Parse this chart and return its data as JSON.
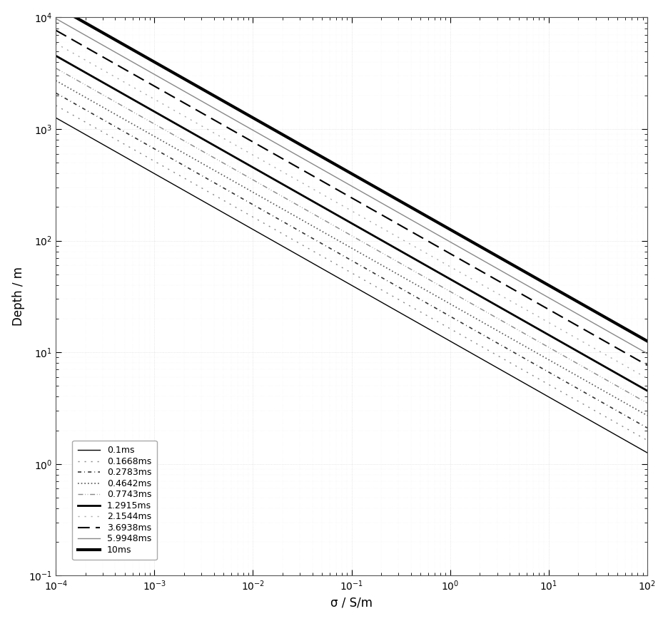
{
  "times_ms": [
    0.1,
    0.1668,
    0.2783,
    0.4642,
    0.7743,
    1.2915,
    2.1544,
    3.6938,
    5.9948,
    10.0
  ],
  "labels": [
    "0.1ms",
    "0.1668ms",
    "0.2783ms",
    "0.4642ms",
    "0.7743ms",
    "1.2915ms",
    "2.1544ms",
    "3.6938ms",
    "5.9948ms",
    "10ms"
  ],
  "line_configs": [
    {
      "color": "#000000",
      "linestyle": "-",
      "linewidth": 1.0
    },
    {
      "color": "#888888",
      "linestyle": ":",
      "linewidth": 1.0,
      "dashes": [
        1.5,
        5.0
      ]
    },
    {
      "color": "#333333",
      "linestyle": ":",
      "linewidth": 1.2,
      "dashes": [
        3.0,
        2.5,
        0.5,
        2.5
      ]
    },
    {
      "color": "#555555",
      "linestyle": ":",
      "linewidth": 1.2,
      "dashes": [
        1.0,
        1.8
      ]
    },
    {
      "color": "#888888",
      "linestyle": "-.",
      "linewidth": 1.0,
      "dashes": [
        5.0,
        2.0,
        0.5,
        2.0,
        0.5,
        2.0
      ]
    },
    {
      "color": "#000000",
      "linestyle": "-",
      "linewidth": 2.0
    },
    {
      "color": "#aaaaaa",
      "linestyle": ":",
      "linewidth": 1.0,
      "dashes": [
        1.5,
        5.0
      ]
    },
    {
      "color": "#000000",
      "linestyle": "--",
      "linewidth": 1.5,
      "dashes": [
        8.0,
        4.0
      ]
    },
    {
      "color": "#888888",
      "linestyle": "-",
      "linewidth": 1.0
    },
    {
      "color": "#000000",
      "linestyle": "-",
      "linewidth": 3.0
    }
  ],
  "sigma_log_min": -4,
  "sigma_log_max": 2,
  "depth_log_min": -1,
  "depth_log_max": 4,
  "xlabel": "σ / S/m",
  "ylabel": "Depth / m",
  "background_color": "#ffffff",
  "mu0": 1.2566370614359173e-06,
  "pi": 3.141592653589793,
  "legend_loc": "lower left",
  "legend_fontsize": 9,
  "axis_labelsize": 12,
  "tick_labelsize": 10
}
